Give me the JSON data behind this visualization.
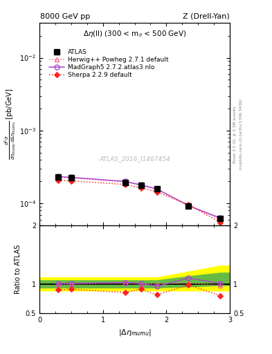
{
  "title_left": "8000 GeV pp",
  "title_right": "Z (Drell-Yan)",
  "subtitle": "$\\Delta\\eta$(ll) (300 < m$_{ll}$ < 500 GeV)",
  "watermark": "ATLAS_2016_I1467454",
  "right_label": "mcplots.cern.ch [arXiv:1306.3436]",
  "right_label2": "Rivet 3.1.10, ≥ 3.3M events",
  "ylabel_ratio": "Ratio to ATLAS",
  "xlabel": "|$\\Delta\\eta_{mumu}$|",
  "x_data": [
    0.3,
    0.5,
    1.35,
    1.6,
    1.85,
    2.35,
    2.85
  ],
  "atlas_y": [
    0.00023,
    0.000225,
    0.000195,
    0.000178,
    0.000158,
    9.2e-05,
    6.2e-05
  ],
  "herwig_y": [
    0.000228,
    0.000224,
    0.000198,
    0.000176,
    0.000156,
    9.4e-05,
    6e-05
  ],
  "herwig_color": "#ff6688",
  "herwig_label": "Herwig++ Powheg 2.7.1 default",
  "madgraph_y": [
    0.000233,
    0.000228,
    0.0002,
    0.00018,
    0.000158,
    9.3e-05,
    6.3e-05
  ],
  "madgraph_color": "#aa44cc",
  "madgraph_label": "MadGraph5 2.7.2.atlas3 nlo",
  "sherpa_y": [
    0.000208,
    0.000204,
    0.000182,
    0.000163,
    0.000144,
    9.6e-05,
    5.5e-05
  ],
  "sherpa_color": "#ff2222",
  "sherpa_label": "Sherpa 2.2.9 default",
  "ratio_herwig": [
    1.0,
    1.0,
    1.015,
    1.0,
    1.0,
    1.02,
    0.97
  ],
  "ratio_madgraph": [
    1.01,
    1.01,
    1.025,
    1.01,
    0.96,
    1.1,
    1.01
  ],
  "ratio_sherpa": [
    0.9,
    0.91,
    0.855,
    0.91,
    0.815,
    0.985,
    0.8
  ],
  "band_x": [
    0.0,
    0.3,
    0.5,
    1.35,
    1.6,
    1.85,
    2.35,
    2.85,
    3.0
  ],
  "band_green_lo": [
    0.93,
    0.93,
    0.93,
    0.93,
    0.93,
    0.93,
    0.95,
    0.97,
    0.97
  ],
  "band_green_hi": [
    1.07,
    1.07,
    1.07,
    1.07,
    1.07,
    1.07,
    1.14,
    1.2,
    1.2
  ],
  "band_yellow_lo": [
    0.88,
    0.88,
    0.88,
    0.88,
    0.88,
    0.88,
    0.88,
    0.88,
    0.88
  ],
  "band_yellow_hi": [
    1.12,
    1.12,
    1.12,
    1.12,
    1.12,
    1.12,
    1.22,
    1.32,
    1.32
  ],
  "ylim_main": [
    5e-05,
    0.03
  ],
  "ylim_ratio": [
    0.5,
    2.0
  ],
  "xlim": [
    0.0,
    3.0
  ]
}
